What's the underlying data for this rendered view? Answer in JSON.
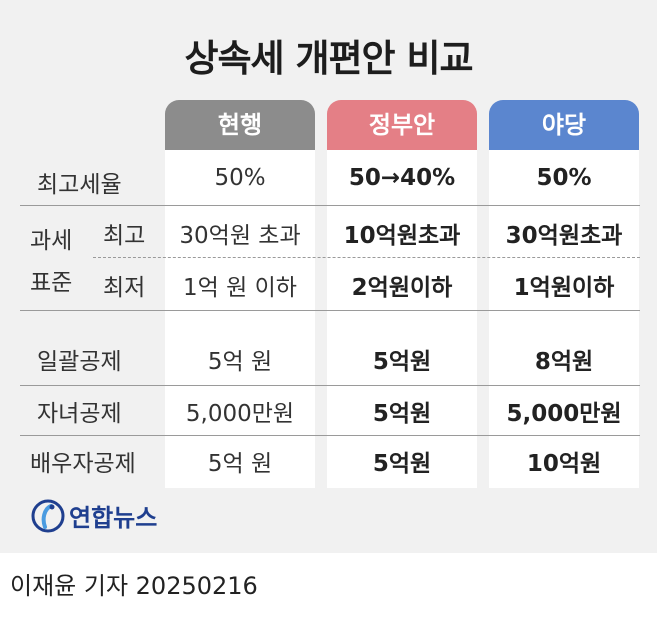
{
  "title": "상속세 개편안 비교",
  "headers": {
    "current": "현행",
    "government": "정부안",
    "opposition": "야당"
  },
  "colors": {
    "current": "#8c8c8c",
    "government": "#e47f86",
    "opposition": "#5b86cf"
  },
  "labels": {
    "top_rate": "최고세율",
    "tax_base_1": "과세",
    "tax_base_2": "표준",
    "max": "최고",
    "min": "최저",
    "lump_sum": "일괄공제",
    "children": "자녀공제",
    "spouse": "배우자공제"
  },
  "rows": {
    "top_rate": [
      "50%",
      "50→40%",
      "50%"
    ],
    "max": [
      "30억원 초과",
      "10억원초과",
      "30억원초과"
    ],
    "min": [
      "1억 원 이하",
      "2억원이하",
      "1억원이하"
    ],
    "lump_sum": [
      "5억 원",
      "5억원",
      "8억원"
    ],
    "children": [
      "5,000만원",
      "5억원",
      "5,000만원"
    ],
    "spouse": [
      "5억 원",
      "5억원",
      "10억원"
    ]
  },
  "logo_text": "연합뉴스",
  "credit": "이재윤 기자  20250216"
}
